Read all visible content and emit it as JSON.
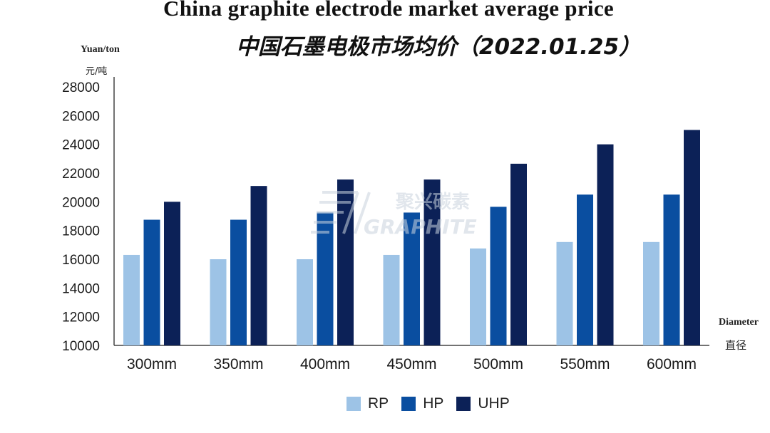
{
  "title_en": "China graphite electrode market average price",
  "title_zh": "中国石墨电极市场均价（2022.01.25）",
  "y_unit_en": "Yuan/ton",
  "y_unit_zh": "元/吨",
  "x_axis_en": "Diameter",
  "x_axis_zh": "直径",
  "watermark_zh": "聚兴碳素",
  "watermark_en": "GRAPHITE",
  "chart_data": {
    "type": "bar",
    "title": "China graphite electrode market average price",
    "subtitle": "中国石墨电极市场均价（2022.01.25）",
    "xlabel": "Diameter 直径",
    "ylabel": "Yuan/ton 元/吨",
    "ylim": [
      10000,
      28000
    ],
    "yticks": [
      10000,
      12000,
      14000,
      16000,
      18000,
      20000,
      22000,
      24000,
      26000,
      28000
    ],
    "categories": [
      "300mm",
      "350mm",
      "400mm",
      "450mm",
      "500mm",
      "550mm",
      "600mm"
    ],
    "series": [
      {
        "name": "RP",
        "color": "#9dc3e6",
        "values": [
          16300,
          16000,
          16000,
          16300,
          16750,
          17200,
          17200
        ]
      },
      {
        "name": "HP",
        "color": "#0a4ea0",
        "values": [
          18750,
          18750,
          19250,
          19250,
          19650,
          20500,
          20500
        ]
      },
      {
        "name": "UHP",
        "color": "#0c2157",
        "values": [
          20000,
          21100,
          21550,
          21550,
          22650,
          24000,
          25000
        ]
      }
    ],
    "grid": false,
    "legend": "bottom-center"
  }
}
